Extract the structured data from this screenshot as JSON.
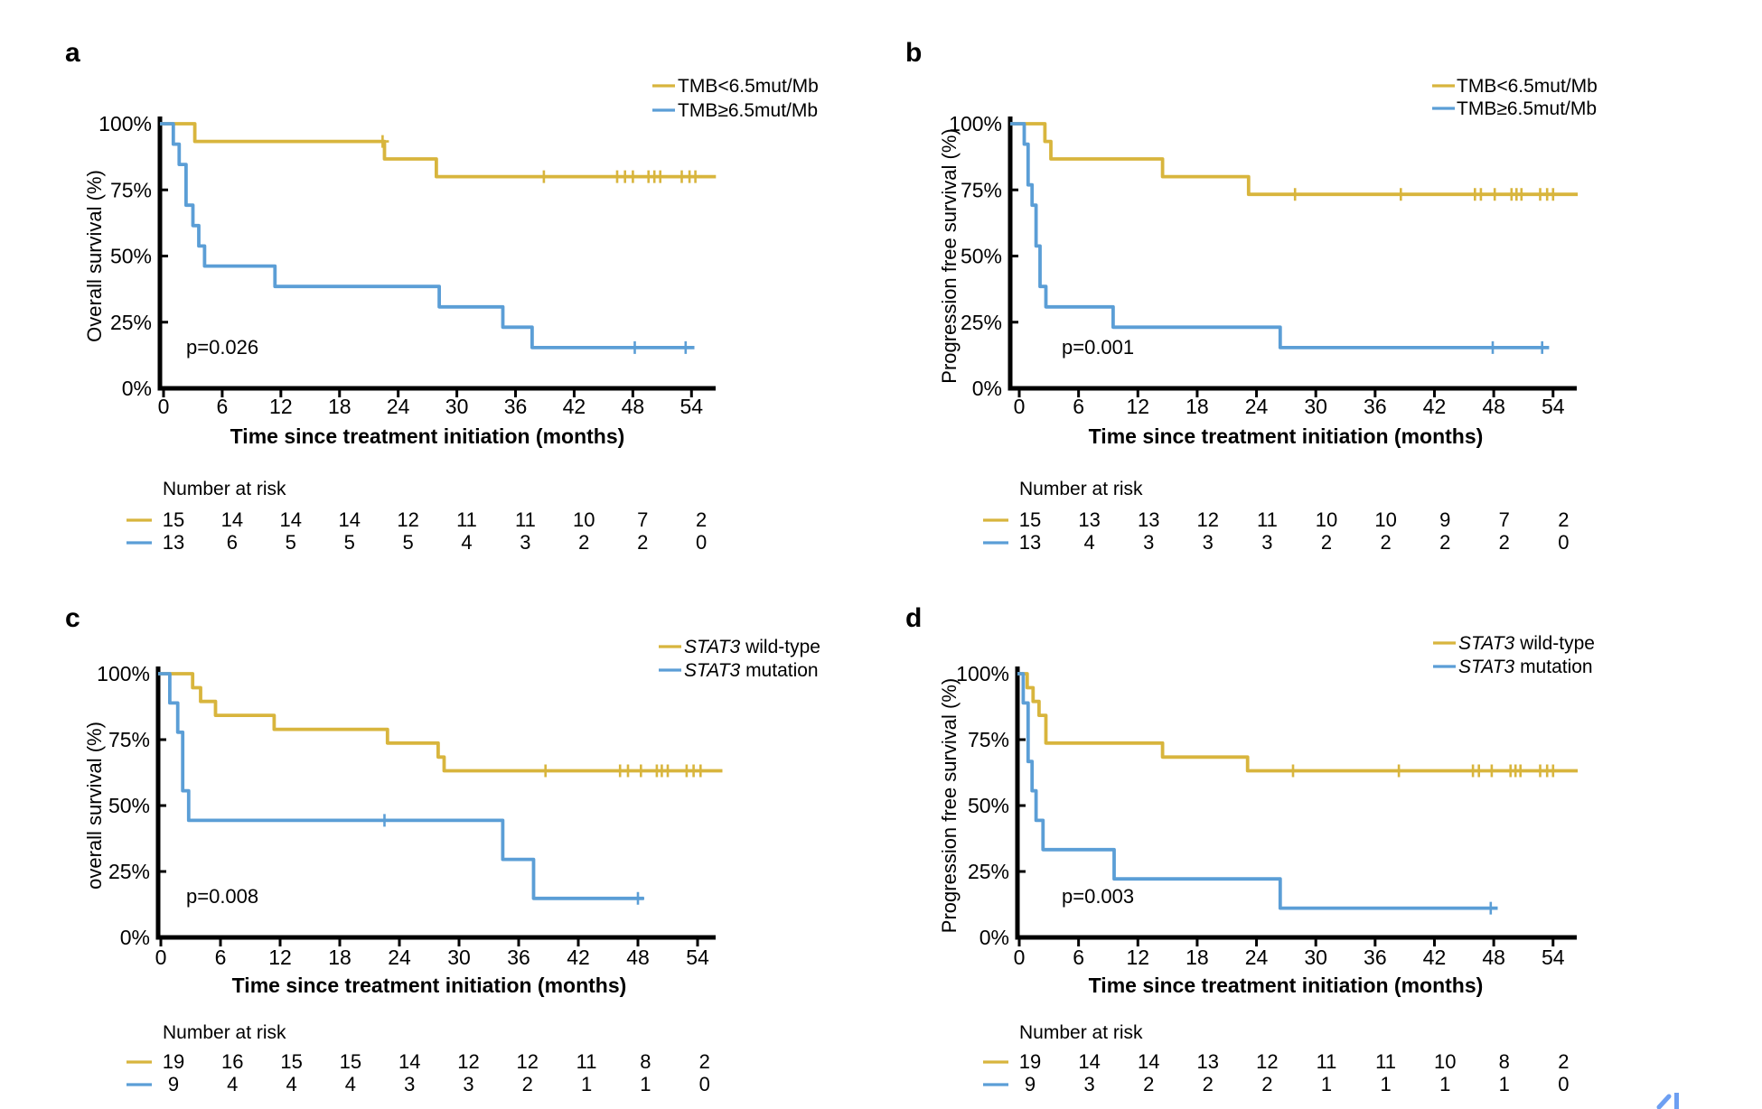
{
  "figure": {
    "background": "#ffffff",
    "corner_artifact_color": "#6d9ff2",
    "accent_yellow": "#d8b53d",
    "accent_blue": "#5b9ed6"
  },
  "chart_data": [
    {
      "panel": "a",
      "type": "line",
      "subtype": "kaplan-meier-step",
      "ylabel": "Overall survival (%)",
      "xlabel": "Time since treatment initiation (months)",
      "p_value": "p=0.026",
      "x_ticks": [
        0,
        6,
        12,
        18,
        24,
        30,
        36,
        42,
        48,
        54
      ],
      "y_tick_labels": [
        "100%",
        "75%",
        "50%",
        "25%",
        "0%"
      ],
      "y_tick_values": [
        100,
        75,
        50,
        25,
        0
      ],
      "xlim": [
        0,
        57
      ],
      "ylim": [
        0,
        100
      ],
      "legend": [
        {
          "color": "#d8b53d",
          "parts": [
            {
              "text": "TMB<6.5mut/Mb",
              "italic": false
            }
          ]
        },
        {
          "color": "#5b9ed6",
          "parts": [
            {
              "text": "TMB≥6.5mut/Mb",
              "italic": false
            }
          ]
        }
      ],
      "series": [
        {
          "name": "TMB<6.5mut/Mb",
          "color": "#d8b53d",
          "start_level": 100,
          "end_t": 56.5,
          "drops": [
            [
              3.2,
              93.3
            ],
            [
              22.6,
              86.7
            ],
            [
              27.9,
              80
            ]
          ],
          "censors": [
            [
              22.4,
              93.3
            ],
            [
              38.9,
              80
            ],
            [
              46.4,
              80
            ],
            [
              47.2,
              80
            ],
            [
              48.0,
              80
            ],
            [
              49.6,
              80
            ],
            [
              50.2,
              80
            ],
            [
              50.8,
              80
            ],
            [
              53.0,
              80
            ],
            [
              53.8,
              80
            ],
            [
              54.4,
              80
            ]
          ]
        },
        {
          "name": "TMB≥6.5mut/Mb",
          "color": "#5b9ed6",
          "start_level": 100,
          "end_t": 54.3,
          "drops": [
            [
              1.0,
              92.3
            ],
            [
              1.6,
              84.6
            ],
            [
              2.3,
              69.2
            ],
            [
              3.0,
              61.5
            ],
            [
              3.6,
              53.8
            ],
            [
              4.2,
              46.2
            ],
            [
              11.4,
              38.5
            ],
            [
              28.2,
              30.8
            ],
            [
              34.7,
              23.1
            ],
            [
              37.7,
              15.4
            ]
          ],
          "censors": [
            [
              48.2,
              15.4
            ],
            [
              53.4,
              15.4
            ]
          ]
        }
      ],
      "risk_table": {
        "title": "Number at risk",
        "rows": [
          {
            "name": "TMB<6.5mut/Mb",
            "color": "#d8b53d",
            "values": [
              15,
              14,
              14,
              14,
              12,
              11,
              11,
              10,
              7,
              2
            ]
          },
          {
            "name": "TMB≥6.5mut/Mb",
            "color": "#5b9ed6",
            "values": [
              13,
              6,
              5,
              5,
              5,
              4,
              3,
              2,
              2,
              0
            ]
          }
        ]
      }
    },
    {
      "panel": "b",
      "type": "line",
      "subtype": "kaplan-meier-step",
      "ylabel": "Progression free survival (%)",
      "xlabel": "Time since treatment initiation (months)",
      "p_value": "p=0.001",
      "x_ticks": [
        0,
        6,
        12,
        18,
        24,
        30,
        36,
        42,
        48,
        54
      ],
      "y_tick_labels": [
        "100%",
        "75%",
        "50%",
        "25%",
        "0%"
      ],
      "y_tick_values": [
        100,
        75,
        50,
        25,
        0
      ],
      "xlim": [
        0,
        57
      ],
      "ylim": [
        0,
        100
      ],
      "legend": [
        {
          "color": "#d8b53d",
          "parts": [
            {
              "text": "TMB<6.5mut/Mb",
              "italic": false
            }
          ]
        },
        {
          "color": "#5b9ed6",
          "parts": [
            {
              "text": "TMB≥6.5mut/Mb",
              "italic": false
            }
          ]
        }
      ],
      "series": [
        {
          "name": "TMB<6.5mut/Mb",
          "color": "#d8b53d",
          "start_level": 100,
          "end_t": 56.5,
          "drops": [
            [
              2.6,
              93.3
            ],
            [
              3.2,
              86.7
            ],
            [
              14.5,
              80
            ],
            [
              23.2,
              73.3
            ]
          ],
          "censors": [
            [
              27.9,
              73.3
            ],
            [
              38.6,
              73.3
            ],
            [
              46.1,
              73.3
            ],
            [
              46.7,
              73.3
            ],
            [
              48.1,
              73.3
            ],
            [
              49.8,
              73.3
            ],
            [
              50.3,
              73.3
            ],
            [
              50.8,
              73.3
            ],
            [
              52.7,
              73.3
            ],
            [
              53.4,
              73.3
            ],
            [
              54.0,
              73.3
            ]
          ]
        },
        {
          "name": "TMB≥6.5mut/Mb",
          "color": "#5b9ed6",
          "start_level": 100,
          "end_t": 53.6,
          "drops": [
            [
              0.5,
              92.3
            ],
            [
              0.9,
              76.9
            ],
            [
              1.3,
              69.2
            ],
            [
              1.7,
              53.8
            ],
            [
              2.1,
              38.5
            ],
            [
              2.7,
              30.8
            ],
            [
              9.5,
              23.1
            ],
            [
              26.4,
              15.4
            ]
          ],
          "censors": [
            [
              47.9,
              15.4
            ],
            [
              52.9,
              15.4
            ]
          ]
        }
      ],
      "risk_table": {
        "title": "Number at risk",
        "rows": [
          {
            "name": "TMB<6.5mut/Mb",
            "color": "#d8b53d",
            "values": [
              15,
              13,
              13,
              12,
              11,
              10,
              10,
              9,
              7,
              2
            ]
          },
          {
            "name": "TMB≥6.5mut/Mb",
            "color": "#5b9ed6",
            "values": [
              13,
              4,
              3,
              3,
              3,
              2,
              2,
              2,
              2,
              0
            ]
          }
        ]
      }
    },
    {
      "panel": "c",
      "type": "line",
      "subtype": "kaplan-meier-step",
      "ylabel": "overall survival (%)",
      "xlabel": "Time since treatment initiation (months)",
      "p_value": "p=0.008",
      "x_ticks": [
        0,
        6,
        12,
        18,
        24,
        30,
        36,
        42,
        48,
        54
      ],
      "y_tick_labels": [
        "100%",
        "75%",
        "50%",
        "25%",
        "0%"
      ],
      "y_tick_values": [
        100,
        75,
        50,
        25,
        0
      ],
      "xlim": [
        0,
        57
      ],
      "ylim": [
        0,
        100
      ],
      "legend": [
        {
          "color": "#d8b53d",
          "parts": [
            {
              "text": "STAT3",
              "italic": true
            },
            {
              "text": " wild-type",
              "italic": false
            }
          ]
        },
        {
          "color": "#5b9ed6",
          "parts": [
            {
              "text": "STAT3",
              "italic": true
            },
            {
              "text": " mutation",
              "italic": false
            }
          ]
        }
      ],
      "series": [
        {
          "name": "STAT3 wild-type",
          "color": "#d8b53d",
          "start_level": 100,
          "end_t": 56.5,
          "drops": [
            [
              3.2,
              94.7
            ],
            [
              4.0,
              89.5
            ],
            [
              5.5,
              84.2
            ],
            [
              11.4,
              78.9
            ],
            [
              22.8,
              73.7
            ],
            [
              27.9,
              68.4
            ],
            [
              28.5,
              63.2
            ]
          ],
          "censors": [
            [
              38.7,
              63.2
            ],
            [
              46.2,
              63.2
            ],
            [
              47.0,
              63.2
            ],
            [
              48.3,
              63.2
            ],
            [
              49.9,
              63.2
            ],
            [
              50.4,
              63.2
            ],
            [
              51.0,
              63.2
            ],
            [
              52.9,
              63.2
            ],
            [
              53.6,
              63.2
            ],
            [
              54.3,
              63.2
            ]
          ]
        },
        {
          "name": "STAT3 mutation",
          "color": "#5b9ed6",
          "start_level": 100,
          "end_t": 48.6,
          "drops": [
            [
              0.9,
              88.9
            ],
            [
              1.7,
              77.8
            ],
            [
              2.2,
              55.6
            ],
            [
              2.8,
              44.4
            ],
            [
              34.4,
              29.6
            ],
            [
              37.5,
              14.8
            ]
          ],
          "censors": [
            [
              22.5,
              44.4
            ],
            [
              48.0,
              14.8
            ]
          ]
        }
      ],
      "risk_table": {
        "title": "Number at risk",
        "rows": [
          {
            "name": "STAT3 wild-type",
            "color": "#d8b53d",
            "values": [
              19,
              16,
              15,
              15,
              14,
              12,
              12,
              11,
              8,
              2
            ]
          },
          {
            "name": "STAT3 mutation",
            "color": "#5b9ed6",
            "values": [
              9,
              4,
              4,
              4,
              3,
              3,
              2,
              1,
              1,
              0
            ]
          }
        ]
      }
    },
    {
      "panel": "d",
      "type": "line",
      "subtype": "kaplan-meier-step",
      "ylabel": "Progression free survival (%)",
      "xlabel": "Time since treatment initiation (months)",
      "p_value": "p=0.003",
      "x_ticks": [
        0,
        6,
        12,
        18,
        24,
        30,
        36,
        42,
        48,
        54
      ],
      "y_tick_labels": [
        "100%",
        "75%",
        "50%",
        "25%",
        "0%"
      ],
      "y_tick_values": [
        100,
        75,
        50,
        25,
        0
      ],
      "xlim": [
        0,
        57
      ],
      "ylim": [
        0,
        100
      ],
      "legend": [
        {
          "color": "#d8b53d",
          "parts": [
            {
              "text": "STAT3",
              "italic": true
            },
            {
              "text": " wild-type",
              "italic": false
            }
          ]
        },
        {
          "color": "#5b9ed6",
          "parts": [
            {
              "text": "STAT3",
              "italic": true
            },
            {
              "text": " mutation",
              "italic": false
            }
          ]
        }
      ],
      "series": [
        {
          "name": "STAT3 wild-type",
          "color": "#d8b53d",
          "start_level": 100,
          "end_t": 56.5,
          "drops": [
            [
              0.8,
              94.7
            ],
            [
              1.4,
              89.5
            ],
            [
              2.0,
              84.2
            ],
            [
              2.7,
              73.7
            ],
            [
              14.5,
              68.4
            ],
            [
              23.1,
              63.2
            ]
          ],
          "censors": [
            [
              27.7,
              63.2
            ],
            [
              38.4,
              63.2
            ],
            [
              45.9,
              63.2
            ],
            [
              46.5,
              63.2
            ],
            [
              47.8,
              63.2
            ],
            [
              49.7,
              63.2
            ],
            [
              50.2,
              63.2
            ],
            [
              50.7,
              63.2
            ],
            [
              52.7,
              63.2
            ],
            [
              53.4,
              63.2
            ],
            [
              54.0,
              63.2
            ]
          ]
        },
        {
          "name": "STAT3 mutation",
          "color": "#5b9ed6",
          "start_level": 100,
          "end_t": 48.4,
          "drops": [
            [
              0.4,
              88.9
            ],
            [
              0.9,
              66.7
            ],
            [
              1.3,
              55.6
            ],
            [
              1.7,
              44.4
            ],
            [
              2.4,
              33.3
            ],
            [
              9.6,
              22.2
            ],
            [
              26.4,
              11.1
            ]
          ],
          "censors": [
            [
              47.7,
              11.1
            ]
          ]
        }
      ],
      "risk_table": {
        "title": "Number at risk",
        "rows": [
          {
            "name": "STAT3 wild-type",
            "color": "#d8b53d",
            "values": [
              19,
              14,
              14,
              13,
              12,
              11,
              11,
              10,
              8,
              2
            ]
          },
          {
            "name": "STAT3 mutation",
            "color": "#5b9ed6",
            "values": [
              9,
              3,
              2,
              2,
              2,
              1,
              1,
              1,
              1,
              0
            ]
          }
        ]
      }
    }
  ]
}
